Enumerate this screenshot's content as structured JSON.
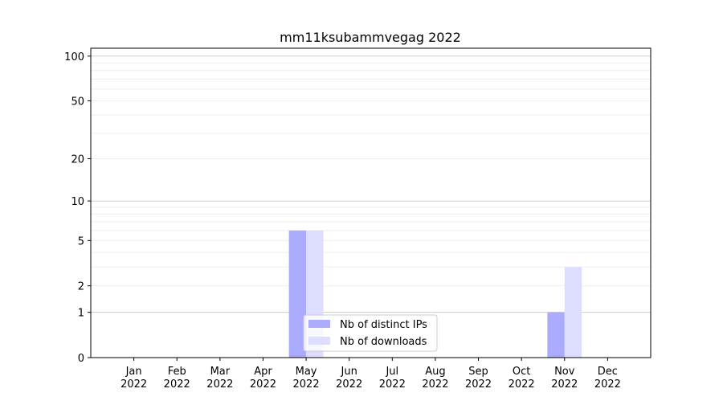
{
  "chart_data": {
    "type": "bar",
    "title": "mm11ksubammvegag 2022",
    "xlabel": "",
    "ylabel": "",
    "yscale": "log(1+y)",
    "ylim": [
      0,
      113
    ],
    "yticks": [
      0,
      1,
      2,
      5,
      10,
      20,
      50,
      100
    ],
    "grid": true,
    "legend_position": "bottom-center",
    "categories": [
      "Jan\n2022",
      "Feb\n2022",
      "Mar\n2022",
      "Apr\n2022",
      "May\n2022",
      "Jun\n2022",
      "Jul\n2022",
      "Aug\n2022",
      "Sep\n2022",
      "Oct\n2022",
      "Nov\n2022",
      "Dec\n2022"
    ],
    "series": [
      {
        "name": "Nb of distinct IPs",
        "color": "#aaaaff",
        "values": [
          0,
          0,
          0,
          0,
          6,
          0,
          0,
          0,
          0,
          0,
          1,
          0
        ]
      },
      {
        "name": "Nb of downloads",
        "color": "#ddddff",
        "values": [
          0,
          0,
          0,
          0,
          6,
          0,
          0,
          0,
          0,
          0,
          3,
          0
        ]
      }
    ]
  }
}
